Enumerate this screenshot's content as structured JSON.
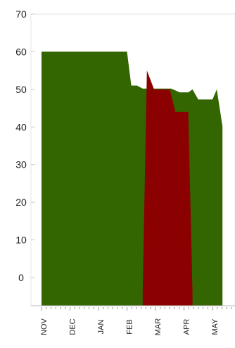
{
  "chart_data": {
    "type": "area",
    "categories": [
      "NOV",
      "DEC",
      "JAN",
      "FEB",
      "MAR",
      "APR",
      "MAY"
    ],
    "y_ticks": [
      "70",
      "60",
      "50",
      "40",
      "30",
      "20",
      "10",
      "0"
    ],
    "title": "",
    "xlabel": "",
    "ylabel": "",
    "grid": false,
    "legend": "none",
    "series": [
      {
        "color": "#336600",
        "points": [
          [
            0,
            60
          ],
          [
            3,
            60
          ],
          [
            3.15,
            51
          ],
          [
            3.35,
            51
          ],
          [
            3.55,
            50.2
          ],
          [
            4.1,
            50.2
          ],
          [
            4.55,
            50.2
          ],
          [
            4.85,
            49.2
          ],
          [
            5.15,
            49.2
          ],
          [
            5.3,
            50
          ],
          [
            5.5,
            47.3
          ],
          [
            6.0,
            47.3
          ],
          [
            6.15,
            50
          ],
          [
            6.35,
            40.2
          ]
        ]
      },
      {
        "color": "#8b0000",
        "points": [
          [
            3.55,
            -4
          ],
          [
            3.7,
            55
          ],
          [
            3.95,
            50
          ],
          [
            4.5,
            50
          ],
          [
            4.7,
            44
          ],
          [
            5.15,
            44
          ],
          [
            5.3,
            -4
          ]
        ]
      }
    ]
  }
}
